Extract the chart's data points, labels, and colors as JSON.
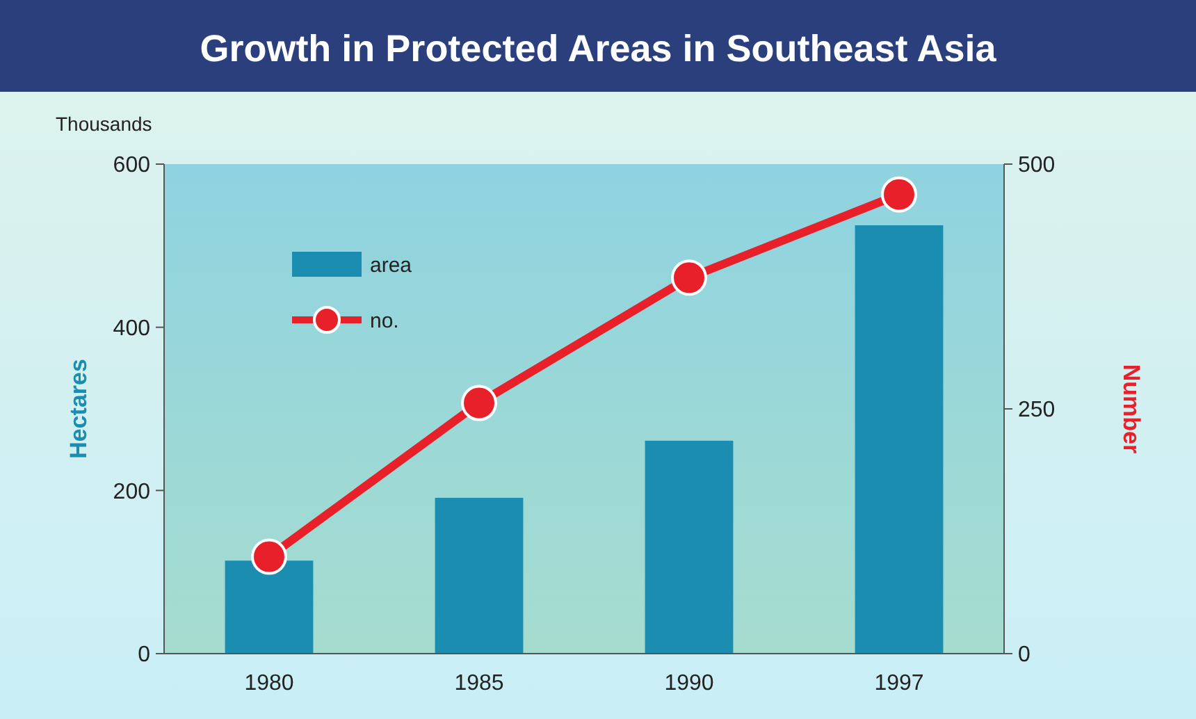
{
  "chart_data": {
    "type": "bar",
    "title": "Growth in Protected Areas in Southeast Asia",
    "ylabel": "Hectares",
    "y2label": "Number",
    "annotations": [
      "Thousands"
    ],
    "categories": [
      "1980",
      "1985",
      "1990",
      "1997"
    ],
    "series": [
      {
        "name": "area",
        "color": "#1b8db0",
        "values": [
          114,
          191,
          261,
          525
        ]
      },
      {
        "name": "no.",
        "type": "line",
        "axis": "y2",
        "color": "#e8202a",
        "values": [
          99,
          256,
          384,
          469
        ],
        "marker": "circle"
      }
    ],
    "ylim": [
      0,
      600
    ],
    "yticks": [
      0,
      200,
      400,
      600
    ],
    "y2lim": [
      0,
      500
    ],
    "y2ticks": [
      0,
      250,
      500
    ],
    "legend": "top left",
    "grid": false
  }
}
